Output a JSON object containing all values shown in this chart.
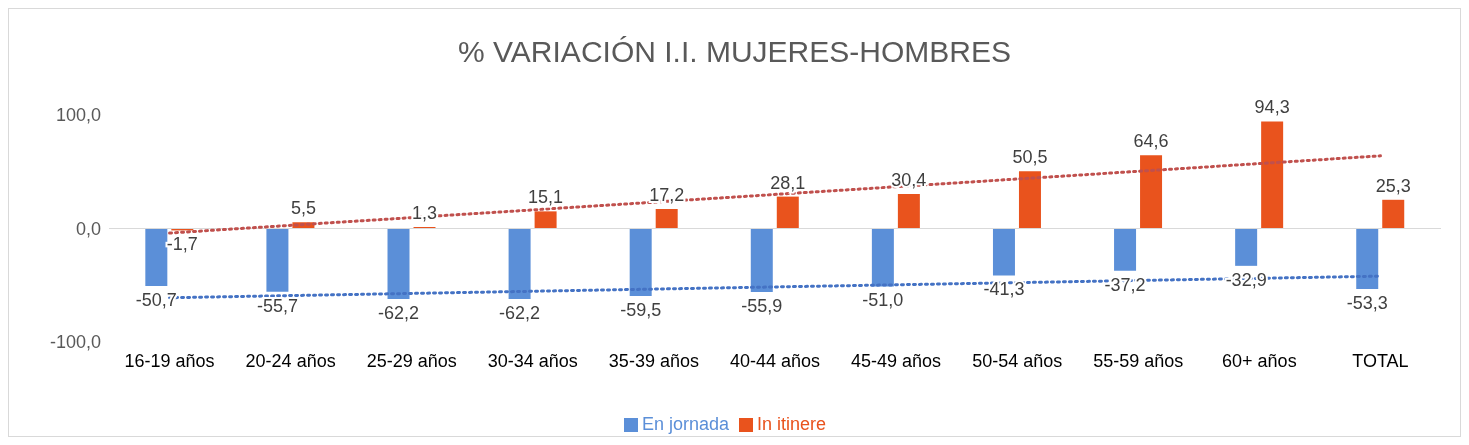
{
  "chart_data": {
    "type": "bar",
    "title": "% VARIACIÓN I.I. MUJERES-HOMBRES",
    "categories": [
      "16-19 años",
      "20-24 años",
      "25-29 años",
      "30-34 años",
      "35-39 años",
      "40-44 años",
      "45-49 años",
      "50-54 años",
      "55-59 años",
      "60+ años",
      "TOTAL"
    ],
    "series": [
      {
        "name": "En jornada",
        "color": "#5b8fd8",
        "values": [
          -50.7,
          -55.7,
          -62.2,
          -62.2,
          -59.5,
          -55.9,
          -51.0,
          -41.3,
          -37.2,
          -32.9,
          -53.3
        ],
        "value_labels": [
          "-50,7",
          "-55,7",
          "-62,2",
          "-62,2",
          "-59,5",
          "-55,9",
          "-51,0",
          "-41,3",
          "-37,2",
          "-32,9",
          "-53,3"
        ]
      },
      {
        "name": "In itinere",
        "color": "#e9531d",
        "values": [
          -1.7,
          5.5,
          1.3,
          15.1,
          17.2,
          28.1,
          30.4,
          50.5,
          64.6,
          94.3,
          25.3
        ],
        "value_labels": [
          "-1,7",
          "5,5",
          "1,3",
          "15,1",
          "17,2",
          "28,1",
          "30,4",
          "50,5",
          "64,6",
          "94,3",
          "25,3"
        ]
      },
      {
        "type": "line",
        "color": "#4472c4",
        "line_style": "dotted",
        "x": [
          "16-19 años",
          "TOTAL"
        ],
        "values": [
          -61,
          -42
        ]
      },
      {
        "type": "line",
        "color": "#c0504d",
        "line_style": "dotted",
        "x": [
          "16-19 años",
          "TOTAL"
        ],
        "values": [
          -4,
          64
        ]
      }
    ],
    "ylim": [
      -100,
      100
    ],
    "yticks": [
      {
        "value": -100,
        "label": "-100,0"
      },
      {
        "value": 0,
        "label": "0,0"
      },
      {
        "value": 100,
        "label": "100,0"
      }
    ],
    "ref_lines": [
      {
        "axis": "y",
        "value": 0,
        "color": "#d9d9d9"
      }
    ],
    "grid": false,
    "legend": "bottom"
  }
}
